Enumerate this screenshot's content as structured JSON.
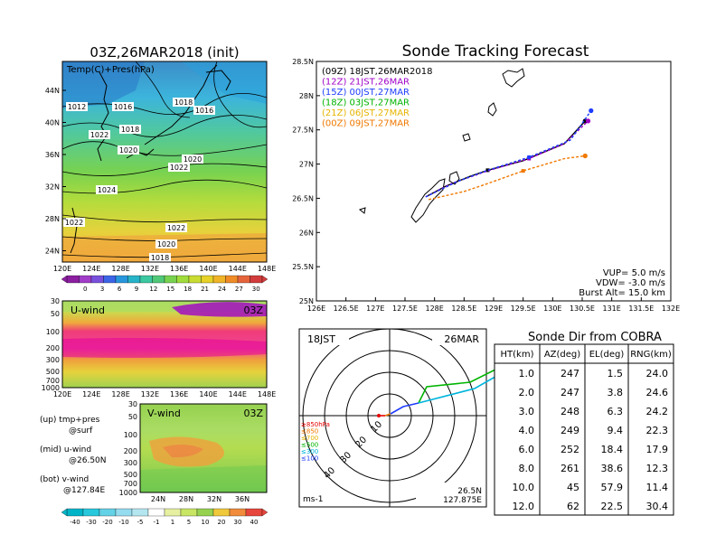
{
  "left_panel": {
    "title": "03Z,26MAR2018 (init)",
    "map_label": "Temp(C)+Pres(hPa)",
    "lat_ticks": [
      "44N",
      "40N",
      "36N",
      "32N",
      "28N",
      "24N"
    ],
    "lon_ticks": [
      "120E",
      "124E",
      "128E",
      "132E",
      "136E",
      "140E",
      "144E",
      "148E"
    ],
    "isobar_labels": [
      "1012",
      "1016",
      "1018",
      "1016",
      "1022",
      "1018",
      "1020",
      "1020",
      "1022",
      "1024",
      "1022",
      "1022",
      "1020",
      "1018"
    ],
    "temp_colorbar_ticks": [
      "0",
      "3",
      "6",
      "9",
      "12",
      "15",
      "18",
      "21",
      "24",
      "27",
      "30"
    ],
    "uwind": {
      "label": "U-wind",
      "time": "03Z",
      "p_ticks": [
        "30",
        "50",
        "100",
        "200",
        "300",
        "500",
        "700",
        "1000"
      ],
      "lon_ticks": [
        "120E",
        "124E",
        "128E",
        "132E",
        "136E",
        "140E",
        "144E",
        "148E"
      ]
    },
    "vwind": {
      "label": "V-wind",
      "time": "03Z",
      "p_ticks": [
        "30",
        "50",
        "100",
        "200",
        "300",
        "500",
        "700",
        "1000"
      ],
      "lat_ticks": [
        "24N",
        "28N",
        "32N",
        "36N"
      ]
    },
    "legend_lines": [
      "(up) tmp+pres",
      "@surf",
      "(mid) u-wind",
      "@26.50N",
      "(bot) v-wind",
      "@127.84E"
    ],
    "wind_colorbar_ticks": [
      "-40",
      "-30",
      "-20",
      "-10",
      "-5",
      "-1",
      "1",
      "5",
      "10",
      "20",
      "30",
      "40"
    ]
  },
  "tracking": {
    "title": "Sonde Tracking Forecast",
    "lat_ticks": [
      "28.5N",
      "28N",
      "27.5N",
      "27N",
      "26.5N",
      "26N",
      "25.5N",
      "25N"
    ],
    "lon_ticks": [
      "126E",
      "126.5E",
      "127E",
      "127.5E",
      "128E",
      "128.5E",
      "129E",
      "129.5E",
      "130E",
      "130.5E",
      "131E",
      "131.5E",
      "132E"
    ],
    "legend": [
      {
        "text": "(09Z) 18JST,26MAR2018",
        "color": "#000000"
      },
      {
        "text": "(12Z) 21JST,26MAR",
        "color": "#a000c8"
      },
      {
        "text": "(15Z) 00JST,27MAR",
        "color": "#1e3cff"
      },
      {
        "text": "(18Z) 03JST,27MAR",
        "color": "#00b400"
      },
      {
        "text": "(21Z) 06JST,27MAR",
        "color": "#e6b400"
      },
      {
        "text": "(00Z) 09JST,27MAR",
        "color": "#f07800"
      }
    ],
    "params": [
      "VUP=  5.0 m/s",
      "VDW= -3.0 m/s",
      "Burst Alt= 15.0 km"
    ]
  },
  "polar": {
    "left_label": "18JST",
    "right_label": "26MAR",
    "range_labels": [
      "10",
      "20",
      "30",
      "40"
    ],
    "level_legend": [
      {
        "text": "≥850hPa",
        "color": "#e60000"
      },
      {
        "text": "≤850",
        "color": "#f07800"
      },
      {
        "text": "≤700",
        "color": "#e6b400"
      },
      {
        "text": "≤500",
        "color": "#00b400"
      },
      {
        "text": "≤300",
        "color": "#00b4dc"
      },
      {
        "text": "≤100",
        "color": "#1e3cff"
      }
    ],
    "unit": "ms-1",
    "location_lat": "26.5N",
    "location_lon": "127.875E"
  },
  "cobra_table": {
    "title": "Sonde Dir from COBRA",
    "columns": [
      "HT(km)",
      "AZ(deg)",
      "EL(deg)",
      "RNG(km)"
    ],
    "rows": [
      [
        "1.0",
        "247",
        "1.5",
        "24.0"
      ],
      [
        "2.0",
        "247",
        "3.8",
        "24.6"
      ],
      [
        "3.0",
        "248",
        "6.3",
        "24.2"
      ],
      [
        "4.0",
        "249",
        "9.4",
        "22.3"
      ],
      [
        "6.0",
        "252",
        "18.4",
        "17.9"
      ],
      [
        "8.0",
        "261",
        "38.6",
        "12.3"
      ],
      [
        "10.0",
        "45",
        "57.9",
        "11.4"
      ],
      [
        "12.0",
        "62",
        "22.5",
        "30.4"
      ]
    ]
  },
  "chart_data": [
    {
      "type": "line",
      "title": "Sonde Tracking Forecast",
      "xlabel": "",
      "ylabel": "",
      "xlim": [
        126,
        132
      ],
      "ylim": [
        25,
        28.5
      ],
      "series": [
        {
          "name": "(09Z) 18JST,26MAR2018",
          "x": [
            127.85,
            128.2,
            128.6,
            128.9,
            129.5,
            130.2,
            130.55
          ],
          "y": [
            26.52,
            26.68,
            26.82,
            26.91,
            27.05,
            27.3,
            27.63
          ]
        },
        {
          "name": "(12Z) 21JST,26MAR",
          "x": [
            127.85,
            128.3,
            128.9,
            129.6,
            130.2,
            130.6
          ],
          "y": [
            26.52,
            26.72,
            26.9,
            27.08,
            27.3,
            27.63
          ]
        },
        {
          "name": "(15Z) 00JST,27MAR",
          "x": [
            127.85,
            128.4,
            128.9,
            129.6,
            130.3,
            130.65
          ],
          "y": [
            26.52,
            26.75,
            26.91,
            27.1,
            27.35,
            27.78
          ]
        },
        {
          "name": "(00Z) 09JST,27MAR",
          "x": [
            127.9,
            128.5,
            128.85,
            129.5,
            130.2,
            130.55
          ],
          "y": [
            26.48,
            26.6,
            26.7,
            26.9,
            27.08,
            27.12
          ]
        }
      ]
    },
    {
      "type": "table",
      "title": "Sonde Dir from COBRA",
      "columns": [
        "HT(km)",
        "AZ(deg)",
        "EL(deg)",
        "RNG(km)"
      ],
      "rows": [
        [
          1.0,
          247,
          1.5,
          24.0
        ],
        [
          2.0,
          247,
          3.8,
          24.6
        ],
        [
          3.0,
          248,
          6.3,
          24.2
        ],
        [
          4.0,
          249,
          9.4,
          22.3
        ],
        [
          6.0,
          252,
          18.4,
          17.9
        ],
        [
          8.0,
          261,
          38.6,
          12.3
        ],
        [
          10.0,
          45,
          57.9,
          11.4
        ],
        [
          12.0,
          62,
          22.5,
          30.4
        ]
      ]
    }
  ]
}
